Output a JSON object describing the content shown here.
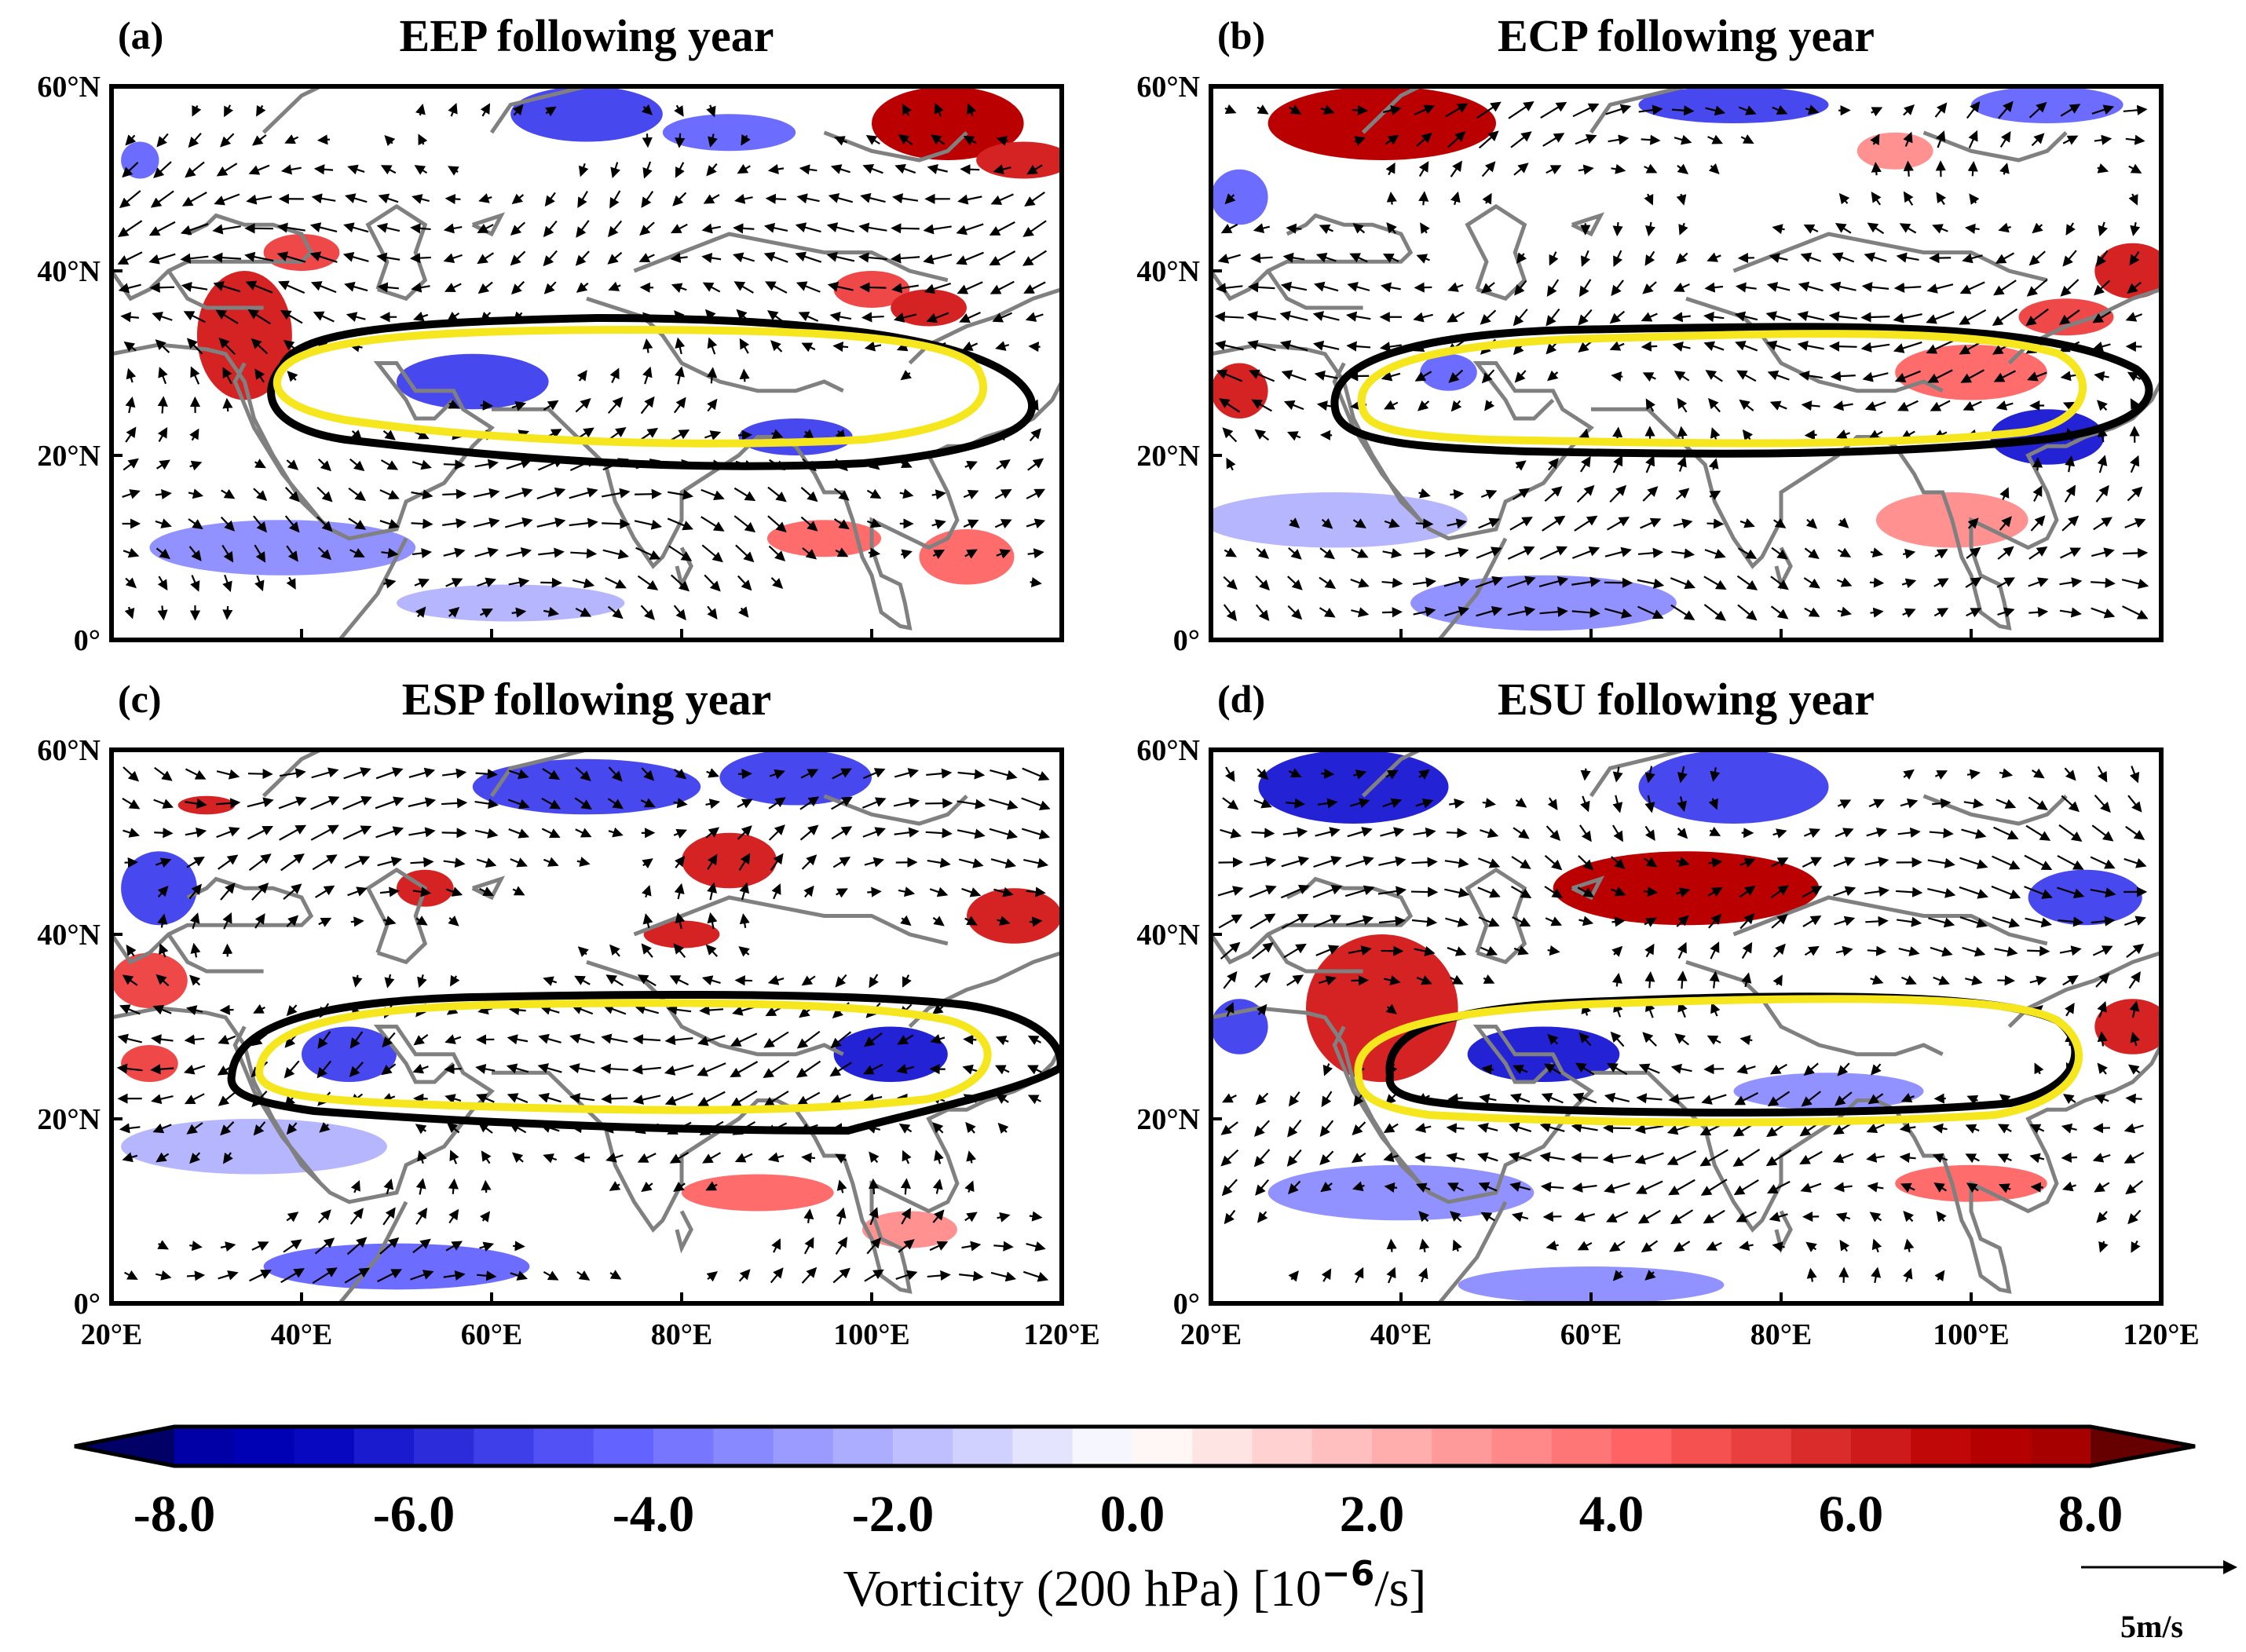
{
  "chart_data": {
    "type": "map-panels",
    "panels": [
      {
        "label": "(a)",
        "title": "EEP following year",
        "blobs": [
          {
            "lon": 70,
            "lat": 57,
            "w": 8,
            "h": 3,
            "v": -5
          },
          {
            "lon": 85,
            "lat": 55,
            "w": 7,
            "h": 2,
            "v": -4
          },
          {
            "lon": 108,
            "lat": 56,
            "w": 8,
            "h": 4,
            "v": 7
          },
          {
            "lon": 116,
            "lat": 52,
            "w": 5,
            "h": 2,
            "v": 6
          },
          {
            "lon": 34,
            "lat": 33,
            "w": 5,
            "h": 7,
            "v": 6
          },
          {
            "lon": 40,
            "lat": 42,
            "w": 4,
            "h": 2,
            "v": 5
          },
          {
            "lon": 58,
            "lat": 28,
            "w": 8,
            "h": 3,
            "v": -5
          },
          {
            "lon": 92,
            "lat": 22,
            "w": 6,
            "h": 2,
            "v": -5
          },
          {
            "lon": 100,
            "lat": 38,
            "w": 4,
            "h": 2,
            "v": 5
          },
          {
            "lon": 106,
            "lat": 36,
            "w": 4,
            "h": 2,
            "v": 6
          },
          {
            "lon": 38,
            "lat": 10,
            "w": 14,
            "h": 3,
            "v": -3
          },
          {
            "lon": 62,
            "lat": 4,
            "w": 12,
            "h": 2,
            "v": -2
          },
          {
            "lon": 95,
            "lat": 11,
            "w": 6,
            "h": 2,
            "v": 4
          },
          {
            "lon": 110,
            "lat": 9,
            "w": 5,
            "h": 3,
            "v": 4
          },
          {
            "lon": 23,
            "lat": 52,
            "w": 2,
            "h": 2,
            "v": -4
          }
        ]
      },
      {
        "label": "(b)",
        "title": "ECP following year",
        "blobs": [
          {
            "lon": 38,
            "lat": 56,
            "w": 12,
            "h": 4,
            "v": 7
          },
          {
            "lon": 75,
            "lat": 58,
            "w": 10,
            "h": 2,
            "v": -5
          },
          {
            "lon": 108,
            "lat": 58,
            "w": 8,
            "h": 2,
            "v": -4
          },
          {
            "lon": 92,
            "lat": 53,
            "w": 4,
            "h": 2,
            "v": 3
          },
          {
            "lon": 110,
            "lat": 35,
            "w": 5,
            "h": 2,
            "v": 5
          },
          {
            "lon": 117,
            "lat": 40,
            "w": 4,
            "h": 3,
            "v": 6
          },
          {
            "lon": 100,
            "lat": 29,
            "w": 8,
            "h": 3,
            "v": 4
          },
          {
            "lon": 108,
            "lat": 22,
            "w": 6,
            "h": 3,
            "v": -6
          },
          {
            "lon": 45,
            "lat": 29,
            "w": 3,
            "h": 2,
            "v": -4
          },
          {
            "lon": 23,
            "lat": 27,
            "w": 3,
            "h": 3,
            "v": 6
          },
          {
            "lon": 23,
            "lat": 48,
            "w": 3,
            "h": 3,
            "v": -4
          },
          {
            "lon": 33,
            "lat": 13,
            "w": 14,
            "h": 3,
            "v": -2
          },
          {
            "lon": 55,
            "lat": 4,
            "w": 14,
            "h": 3,
            "v": -3
          },
          {
            "lon": 98,
            "lat": 13,
            "w": 8,
            "h": 3,
            "v": 3
          }
        ]
      },
      {
        "label": "(c)",
        "title": "ESP following year",
        "blobs": [
          {
            "lon": 70,
            "lat": 56,
            "w": 12,
            "h": 3,
            "v": -5
          },
          {
            "lon": 92,
            "lat": 57,
            "w": 8,
            "h": 3,
            "v": -5
          },
          {
            "lon": 25,
            "lat": 45,
            "w": 4,
            "h": 4,
            "v": -5
          },
          {
            "lon": 30,
            "lat": 54,
            "w": 3,
            "h": 1,
            "v": 6
          },
          {
            "lon": 53,
            "lat": 45,
            "w": 3,
            "h": 2,
            "v": 6
          },
          {
            "lon": 85,
            "lat": 48,
            "w": 5,
            "h": 3,
            "v": 6
          },
          {
            "lon": 80,
            "lat": 40,
            "w": 4,
            "h": 1.5,
            "v": 6
          },
          {
            "lon": 115,
            "lat": 42,
            "w": 5,
            "h": 3,
            "v": 6
          },
          {
            "lon": 24,
            "lat": 35,
            "w": 4,
            "h": 3,
            "v": 5
          },
          {
            "lon": 24,
            "lat": 26,
            "w": 3,
            "h": 2,
            "v": 5
          },
          {
            "lon": 45,
            "lat": 27,
            "w": 5,
            "h": 3,
            "v": -5
          },
          {
            "lon": 102,
            "lat": 27,
            "w": 6,
            "h": 3,
            "v": -6
          },
          {
            "lon": 35,
            "lat": 17,
            "w": 14,
            "h": 3,
            "v": -2
          },
          {
            "lon": 50,
            "lat": 4,
            "w": 14,
            "h": 2.5,
            "v": -4
          },
          {
            "lon": 88,
            "lat": 12,
            "w": 8,
            "h": 2,
            "v": 4
          },
          {
            "lon": 104,
            "lat": 8,
            "w": 5,
            "h": 2,
            "v": 3
          }
        ]
      },
      {
        "label": "(d)",
        "title": "ESU following year",
        "blobs": [
          {
            "lon": 35,
            "lat": 56,
            "w": 10,
            "h": 4,
            "v": -6
          },
          {
            "lon": 75,
            "lat": 56,
            "w": 10,
            "h": 4,
            "v": -5
          },
          {
            "lon": 112,
            "lat": 44,
            "w": 6,
            "h": 3,
            "v": -5
          },
          {
            "lon": 70,
            "lat": 45,
            "w": 14,
            "h": 4,
            "v": 7
          },
          {
            "lon": 38,
            "lat": 32,
            "w": 8,
            "h": 8,
            "v": 6
          },
          {
            "lon": 117,
            "lat": 30,
            "w": 4,
            "h": 3,
            "v": 6
          },
          {
            "lon": 55,
            "lat": 27,
            "w": 8,
            "h": 3,
            "v": -6
          },
          {
            "lon": 85,
            "lat": 23,
            "w": 10,
            "h": 2,
            "v": -3
          },
          {
            "lon": 100,
            "lat": 13,
            "w": 8,
            "h": 2,
            "v": 4
          },
          {
            "lon": 40,
            "lat": 12,
            "w": 14,
            "h": 3,
            "v": -3
          },
          {
            "lon": 60,
            "lat": 2,
            "w": 14,
            "h": 2,
            "v": -3
          },
          {
            "lon": 23,
            "lat": 30,
            "w": 3,
            "h": 3,
            "v": -5
          }
        ]
      }
    ],
    "x_ticks": [
      "20°E",
      "40°E",
      "60°E",
      "80°E",
      "100°E",
      "120°E"
    ],
    "x_tick_values": [
      20,
      40,
      60,
      80,
      100,
      120
    ],
    "y_ticks": [
      "60°N",
      "40°N",
      "20°N",
      "0°"
    ],
    "y_tick_values": [
      60,
      40,
      20,
      0
    ],
    "xlim": [
      20,
      120
    ],
    "ylim": [
      0,
      60
    ],
    "colorbar": {
      "label": "Vorticity (200 hPa) [10",
      "label_exp": "−6",
      "label_unit": "/s]",
      "ticks": [
        "-8.0",
        "-6.0",
        "-4.0",
        "-2.0",
        "0.0",
        "2.0",
        "4.0",
        "6.0",
        "8.0"
      ],
      "tick_values": [
        -8,
        -6,
        -4,
        -2,
        0,
        2,
        4,
        6,
        8
      ],
      "range": [
        -8,
        8
      ],
      "negative_color": "#0000c8",
      "positive_color": "#c80000"
    },
    "reference_vector": {
      "label": "5m/s",
      "magnitude": 5
    },
    "contour_colors": {
      "climatology": "#000000",
      "anomaly": "#f5e61e"
    },
    "coast_color": "#808080"
  }
}
